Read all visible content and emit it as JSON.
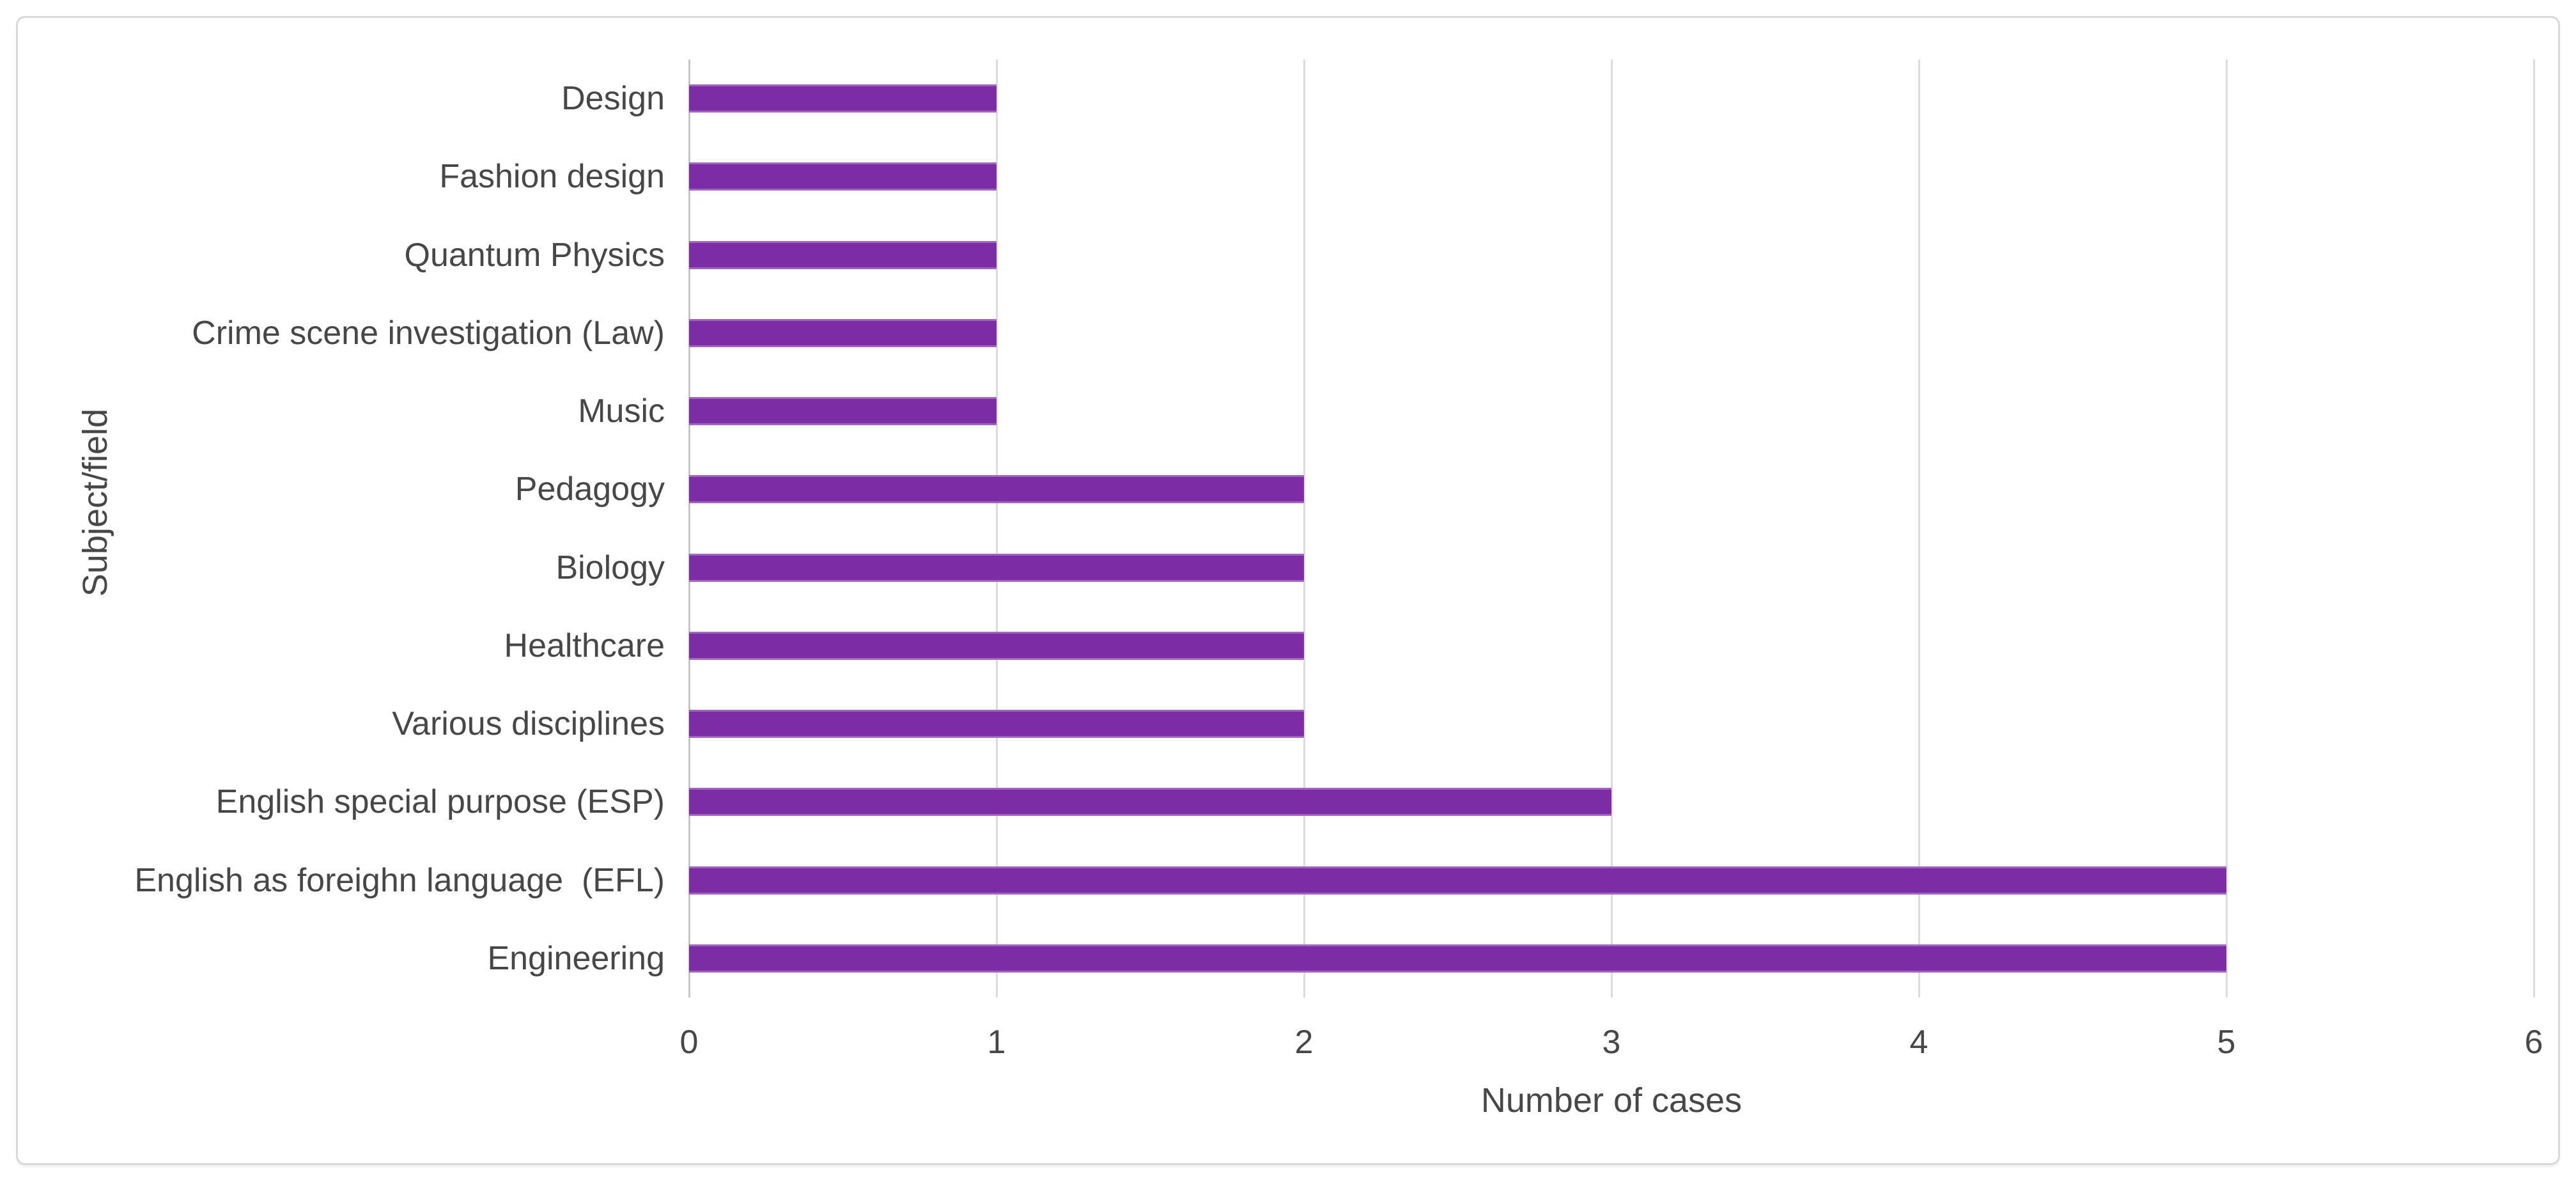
{
  "chart_data": {
    "type": "bar",
    "orientation": "horizontal",
    "title": "",
    "xlabel": "Number of cases",
    "ylabel": "Subject/field",
    "categories": [
      "Design",
      "Fashion design",
      "Quantum Physics",
      "Crime scene investigation (Law)",
      "Music",
      "Pedagogy",
      "Biology",
      "Healthcare",
      "Various disciplines",
      "English special purpose (ESP)",
      "English as foreighn language  (EFL)",
      "Engineering"
    ],
    "values": [
      1,
      1,
      1,
      1,
      1,
      2,
      2,
      2,
      2,
      3,
      5,
      5
    ],
    "xlim": [
      0,
      6
    ],
    "xticks": [
      "0",
      "1",
      "2",
      "3",
      "4",
      "5",
      "6"
    ],
    "grid": "vertical gridlines at each x tick",
    "legend": "none",
    "colors": {
      "bar": "#7C2CA5",
      "gridline": "#DCDCDC",
      "axis_line": "#C6C6C6",
      "text": "#474747",
      "frame_border": "#D9D9D9",
      "background": "#FFFFFF"
    }
  }
}
